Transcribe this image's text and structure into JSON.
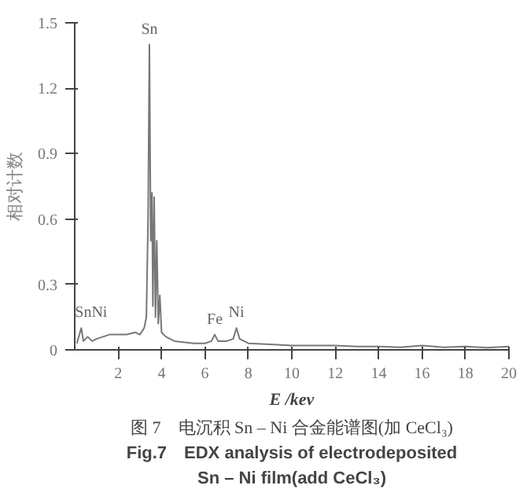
{
  "chart_data": {
    "type": "line",
    "xlabel": "E /kev",
    "ylabel": "相对计数",
    "x": [
      0.1,
      0.3,
      0.4,
      0.6,
      0.8,
      1.0,
      1.3,
      1.6,
      2.0,
      2.4,
      2.8,
      3.0,
      3.2,
      3.3,
      3.38,
      3.44,
      3.5,
      3.56,
      3.6,
      3.66,
      3.72,
      3.78,
      3.85,
      3.92,
      4.0,
      4.2,
      4.6,
      5.0,
      5.5,
      6.0,
      6.3,
      6.45,
      6.6,
      7.0,
      7.3,
      7.45,
      7.6,
      8.0,
      9,
      10,
      11,
      12,
      13,
      14,
      15,
      16,
      17,
      18,
      19,
      20
    ],
    "series": [
      {
        "color": "#777777",
        "values": [
          0.03,
          0.1,
          0.04,
          0.06,
          0.04,
          0.05,
          0.06,
          0.07,
          0.07,
          0.07,
          0.08,
          0.07,
          0.1,
          0.15,
          0.6,
          1.4,
          0.5,
          0.72,
          0.2,
          0.7,
          0.15,
          0.5,
          0.12,
          0.25,
          0.08,
          0.06,
          0.04,
          0.035,
          0.03,
          0.03,
          0.04,
          0.07,
          0.04,
          0.04,
          0.05,
          0.1,
          0.05,
          0.03,
          0.025,
          0.02,
          0.02,
          0.02,
          0.015,
          0.015,
          0.012,
          0.02,
          0.012,
          0.015,
          0.01,
          0.015
        ]
      }
    ],
    "xlim": [
      0,
      20
    ],
    "ylim": [
      0,
      1.5
    ],
    "xticks": [
      2,
      4,
      6,
      8,
      10,
      12,
      14,
      16,
      18,
      20
    ],
    "yticks": [
      0,
      0.3,
      0.6,
      0.9,
      1.2,
      1.5
    ],
    "grid": false,
    "marker": "none",
    "line_style": "solid",
    "annotations": [
      {
        "text": "Sn",
        "x": 3.44,
        "y": 1.4
      },
      {
        "text": "SnNi",
        "x": 0.3,
        "y": 0.1
      },
      {
        "text": "Fe",
        "x": 6.45,
        "y": 0.07
      },
      {
        "text": "Ni",
        "x": 7.45,
        "y": 0.1
      },
      "图 7　电沉积 Sn – Ni 合金能谱图(加 CeCl₃)",
      "Fig.7　EDX analysis of electrodeposited",
      "Sn – Ni film(add CeCl₃)"
    ]
  }
}
